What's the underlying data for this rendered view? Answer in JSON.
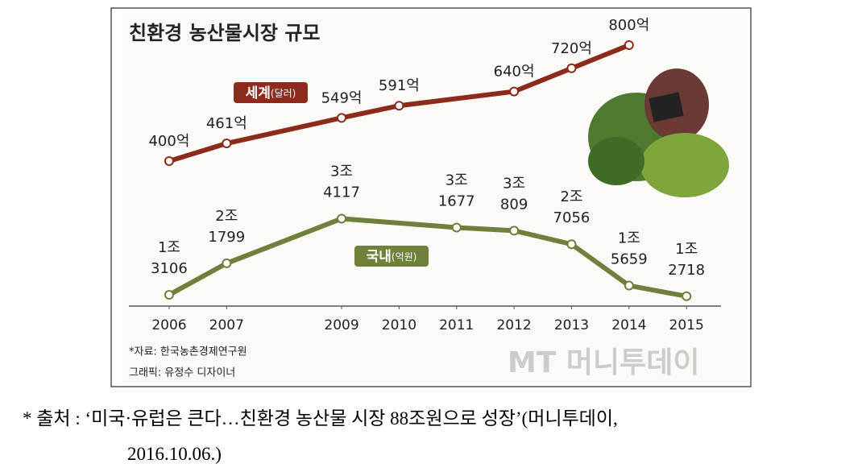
{
  "chart_data": {
    "type": "line",
    "title": "친환경 농산물시장 규모",
    "xticks": [
      2006,
      2007,
      2009,
      2010,
      2011,
      2012,
      2013,
      2014,
      2015
    ],
    "xlim": [
      2005.3,
      2015.6
    ],
    "ylim": [
      10000,
      90000
    ],
    "y2lim": [
      -100,
      900
    ],
    "series": [
      {
        "name": "세계",
        "unit": "(달러)",
        "color": "#8c2b1c",
        "axis": "y2",
        "x": [
          2006,
          2007,
          2009,
          2010,
          2012,
          2013,
          2014
        ],
        "values": [
          400,
          461,
          549,
          591,
          640,
          720,
          800
        ],
        "value_labels": [
          "400억",
          "461억",
          "549억",
          "591억",
          "640억",
          "720억",
          "800억"
        ]
      },
      {
        "name": "국내",
        "unit": "(억원)",
        "color": "#6f7f3c",
        "x": [
          2006,
          2007,
          2009,
          2011,
          2012,
          2013,
          2014,
          2015
        ],
        "values": [
          13106,
          21799,
          34117,
          31677,
          30809,
          27056,
          15659,
          12718
        ],
        "value_labels": [
          [
            "1조",
            "3106"
          ],
          [
            "2조",
            "1799"
          ],
          [
            "3조",
            "4117"
          ],
          [
            "3조",
            "1677"
          ],
          [
            "3조",
            "809"
          ],
          [
            "2조",
            "7056"
          ],
          [
            "1조",
            "5659"
          ],
          [
            "1조",
            "2718"
          ]
        ]
      }
    ],
    "source": "*자료: 한국농촌경제연구원",
    "credit": "그래픽: 유정수 디자이너",
    "watermark": "MT 머니투데이"
  },
  "caption": {
    "line1": "* 출처 : ‘미국·유럽은 큰다…친환경 농산물 시장 88조원으로 성장’(머니투데이,",
    "line2": "2016.10.06.)"
  }
}
